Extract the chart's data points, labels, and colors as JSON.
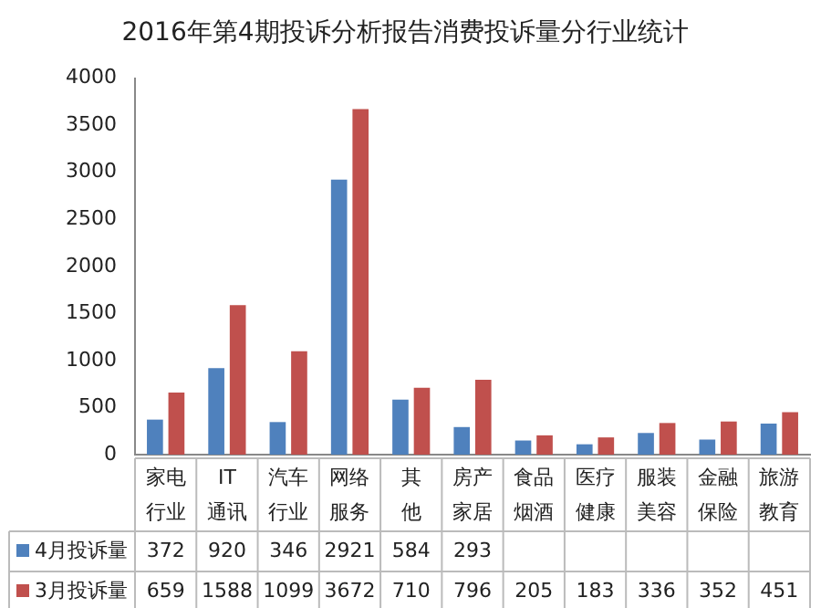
{
  "chart_data": {
    "type": "bar",
    "title": "2016年第4期投诉分析报告消费投诉量分行业统计",
    "categories": [
      "家电行业",
      "IT通讯",
      "汽车行业",
      "网络服务",
      "其他",
      "房产家居",
      "食品烟酒",
      "医疗健康",
      "服装美容",
      "金融保险",
      "旅游教育"
    ],
    "series": [
      {
        "name": "4月投诉量",
        "color": "#4f81bd",
        "values": [
          372,
          920,
          346,
          2921,
          584,
          293,
          150,
          110,
          230,
          160,
          330
        ],
        "value_labels": [
          "372",
          "920",
          "346",
          "2921",
          "584",
          "293",
          null,
          null,
          null,
          null,
          null
        ]
      },
      {
        "name": "3月投诉量",
        "color": "#c0504d",
        "values": [
          659,
          1588,
          1099,
          3672,
          710,
          796,
          205,
          183,
          336,
          352,
          451
        ],
        "value_labels": [
          "659",
          "1588",
          "1099",
          "3672",
          "710",
          "796",
          "205",
          "183",
          "336",
          "352",
          "451"
        ]
      }
    ],
    "ylim": [
      0,
      4000
    ],
    "yticks": [
      0,
      500,
      1000,
      1500,
      2000,
      2500,
      3000,
      3500,
      4000
    ],
    "grid": false,
    "legend": "bottom"
  }
}
